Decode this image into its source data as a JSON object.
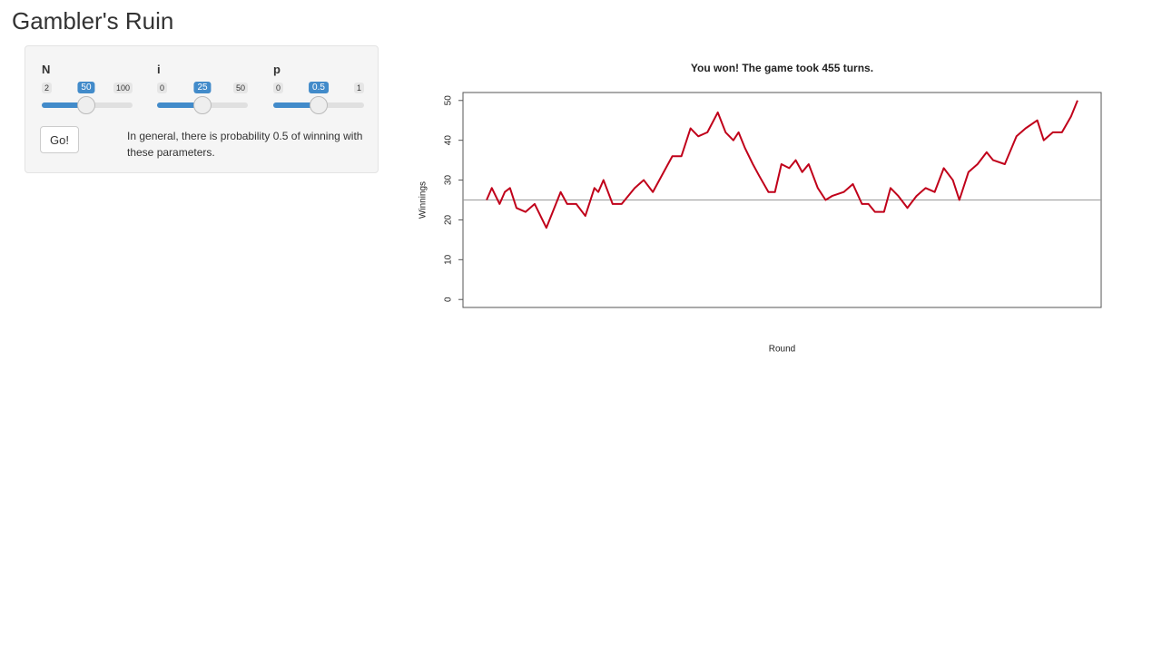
{
  "header": {
    "title": "Gambler's Ruin"
  },
  "sidebar": {
    "sliders": [
      {
        "label": "N",
        "min": 2,
        "max": 100,
        "value": 50
      },
      {
        "label": "i",
        "min": 0,
        "max": 50,
        "value": 25
      },
      {
        "label": "p",
        "min": 0,
        "max": 1,
        "value": 0.5
      }
    ],
    "button": "Go!",
    "help_text": "In general, there is probability 0.5 of winning with these parameters."
  },
  "chart_data": {
    "type": "line",
    "title": "You won! The game took 455 turns.",
    "x_label": "Round",
    "y_label": "Winnings",
    "x": [
      0,
      4,
      10,
      14,
      18,
      23,
      30,
      37,
      46,
      57,
      62,
      69,
      76,
      83,
      86,
      90,
      97,
      104,
      114,
      121,
      128,
      138,
      143,
      150,
      157,
      163,
      170,
      178,
      184,
      190,
      194,
      199,
      205,
      210,
      217,
      222,
      227,
      233,
      238,
      243,
      248,
      255,
      261,
      266,
      275,
      282,
      289,
      294,
      299,
      306,
      311,
      317,
      324,
      331,
      338,
      345,
      352,
      359,
      364,
      371,
      378,
      385,
      390,
      399,
      408,
      415,
      424,
      429,
      436,
      443,
      450,
      455
    ],
    "values": [
      25,
      28,
      24,
      27,
      28,
      23,
      22,
      24,
      18,
      27,
      24,
      24,
      21,
      28,
      27,
      30,
      24,
      24,
      28,
      30,
      27,
      33,
      36,
      36,
      43,
      41,
      42,
      47,
      42,
      40,
      42,
      38,
      34,
      31,
      27,
      27,
      34,
      33,
      35,
      32,
      34,
      28,
      25,
      26,
      27,
      29,
      24,
      24,
      22,
      22,
      28,
      26,
      23,
      26,
      28,
      27,
      33,
      30,
      25,
      32,
      34,
      37,
      35,
      34,
      41,
      43,
      45,
      40,
      42,
      42,
      46,
      50
    ],
    "color": "#c0001a",
    "hline": 25,
    "xlim": [
      -18.2,
      473.2
    ],
    "ylim": [
      -2,
      52
    ],
    "yticks": [
      0,
      10,
      20,
      30,
      40,
      50
    ]
  }
}
